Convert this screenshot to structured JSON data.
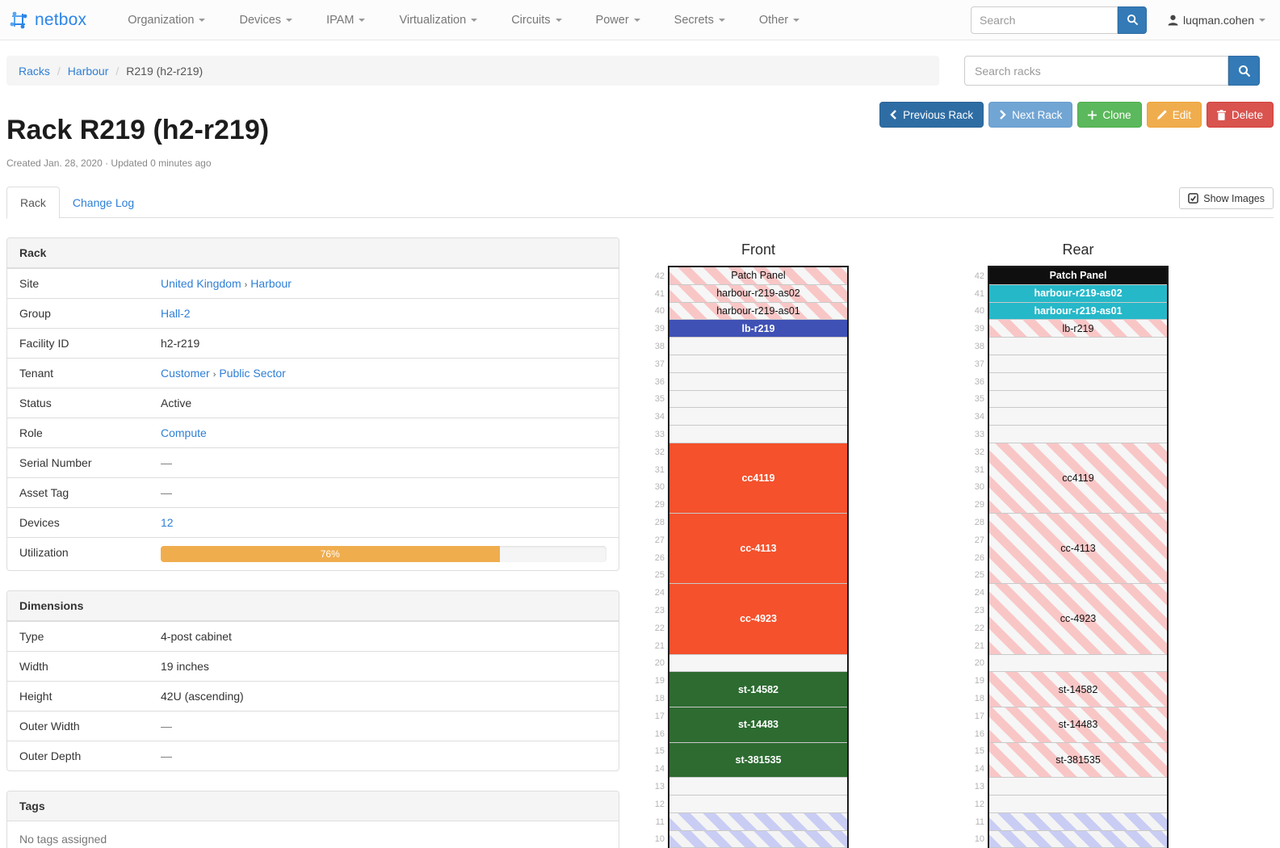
{
  "navbar": {
    "brand": "netbox",
    "items": [
      {
        "label": "Organization"
      },
      {
        "label": "Devices"
      },
      {
        "label": "IPAM"
      },
      {
        "label": "Virtualization"
      },
      {
        "label": "Circuits"
      },
      {
        "label": "Power"
      },
      {
        "label": "Secrets"
      },
      {
        "label": "Other"
      }
    ],
    "search_placeholder": "Search",
    "user": "luqman.cohen"
  },
  "breadcrumb": {
    "items": [
      "Racks",
      "Harbour",
      "R219 (h2-r219)"
    ]
  },
  "rack_search": {
    "placeholder": "Search racks"
  },
  "actions": {
    "previous": "Previous Rack",
    "next": "Next Rack",
    "clone": "Clone",
    "edit": "Edit",
    "delete": "Delete"
  },
  "page": {
    "title": "Rack R219 (h2-r219)",
    "meta": "Created Jan. 28, 2020 · Updated 0 minutes ago"
  },
  "tabs": {
    "rack": "Rack",
    "changelog": "Change Log",
    "show_images": "Show Images"
  },
  "rack_panel": {
    "title": "Rack",
    "site_label": "Site",
    "site_links": [
      "United Kingdom",
      "Harbour"
    ],
    "group_label": "Group",
    "group_link": "Hall-2",
    "facility_label": "Facility ID",
    "facility_value": "h2-r219",
    "tenant_label": "Tenant",
    "tenant_links": [
      "Customer",
      "Public Sector"
    ],
    "status_label": "Status",
    "status_value": "Active",
    "role_label": "Role",
    "role_link": "Compute",
    "serial_label": "Serial Number",
    "serial_value": "—",
    "asset_label": "Asset Tag",
    "asset_value": "—",
    "devices_label": "Devices",
    "devices_link": "12",
    "util_label": "Utilization",
    "util_value": 76,
    "util_pct": "76%"
  },
  "dimensions_panel": {
    "title": "Dimensions",
    "type_label": "Type",
    "type_value": "4-post cabinet",
    "width_label": "Width",
    "width_value": "19 inches",
    "height_label": "Height",
    "height_value": "42U (ascending)",
    "outer_width_label": "Outer Width",
    "outer_width_value": "—",
    "outer_depth_label": "Outer Depth",
    "outer_depth_value": "—"
  },
  "tags_panel": {
    "title": "Tags",
    "empty_text": "No tags assigned"
  },
  "colors": {
    "link_blue": "#2e7fd6",
    "progress_orange": "#f0ad4e",
    "device_blue": "#3f51b5",
    "device_cyan": "#25b8c9",
    "device_orange": "#f4512c",
    "device_green": "#2d6b31",
    "device_black": "#0f0f0f",
    "reserved_stripe_red": "#f9c6c6",
    "reserved_stripe_blue": "#c9cdf4"
  },
  "elevations": {
    "top_unit": 42,
    "bottom_unit": 9,
    "front": {
      "title": "Front",
      "units": [
        {
          "span": 1,
          "label": "Patch Panel",
          "type": "reserved"
        },
        {
          "span": 1,
          "label": "harbour-r219-as02",
          "type": "reserved"
        },
        {
          "span": 1,
          "label": "harbour-r219-as01",
          "type": "reserved"
        },
        {
          "span": 1,
          "label": "lb-r219",
          "type": "device",
          "color": "#3f51b5"
        },
        {
          "span": 1,
          "type": "empty"
        },
        {
          "span": 1,
          "type": "empty"
        },
        {
          "span": 1,
          "type": "empty"
        },
        {
          "span": 1,
          "type": "empty"
        },
        {
          "span": 1,
          "type": "empty"
        },
        {
          "span": 1,
          "type": "empty"
        },
        {
          "span": 4,
          "label": "cc4119",
          "type": "device",
          "color": "#f4512c"
        },
        {
          "span": 4,
          "label": "cc-4113",
          "type": "device",
          "color": "#f4512c"
        },
        {
          "span": 4,
          "label": "cc-4923",
          "type": "device",
          "color": "#f4512c"
        },
        {
          "span": 1,
          "type": "empty"
        },
        {
          "span": 2,
          "label": "st-14582",
          "type": "device",
          "color": "#2d6b31"
        },
        {
          "span": 2,
          "label": "st-14483",
          "type": "device",
          "color": "#2d6b31"
        },
        {
          "span": 2,
          "label": "st-381535",
          "type": "device",
          "color": "#2d6b31"
        },
        {
          "span": 1,
          "type": "empty"
        },
        {
          "span": 1,
          "type": "empty"
        },
        {
          "span": 1,
          "type": "reserved-empty"
        },
        {
          "span": 1,
          "type": "reserved-empty"
        },
        {
          "span": 1,
          "type": "reserved-empty"
        }
      ]
    },
    "rear": {
      "title": "Rear",
      "units": [
        {
          "span": 1,
          "label": "Patch Panel",
          "type": "device",
          "color": "#0f0f0f"
        },
        {
          "span": 1,
          "label": "harbour-r219-as02",
          "type": "device",
          "color": "#25b8c9"
        },
        {
          "span": 1,
          "label": "harbour-r219-as01",
          "type": "device",
          "color": "#25b8c9"
        },
        {
          "span": 1,
          "label": "lb-r219",
          "type": "reserved"
        },
        {
          "span": 1,
          "type": "empty"
        },
        {
          "span": 1,
          "type": "empty"
        },
        {
          "span": 1,
          "type": "empty"
        },
        {
          "span": 1,
          "type": "empty"
        },
        {
          "span": 1,
          "type": "empty"
        },
        {
          "span": 1,
          "type": "empty"
        },
        {
          "span": 4,
          "label": "cc4119",
          "type": "reserved"
        },
        {
          "span": 4,
          "label": "cc-4113",
          "type": "reserved"
        },
        {
          "span": 4,
          "label": "cc-4923",
          "type": "reserved"
        },
        {
          "span": 1,
          "type": "empty"
        },
        {
          "span": 2,
          "label": "st-14582",
          "type": "reserved"
        },
        {
          "span": 2,
          "label": "st-14483",
          "type": "reserved"
        },
        {
          "span": 2,
          "label": "st-381535",
          "type": "reserved"
        },
        {
          "span": 1,
          "type": "empty"
        },
        {
          "span": 1,
          "type": "empty"
        },
        {
          "span": 1,
          "type": "reserved-empty"
        },
        {
          "span": 1,
          "type": "reserved-empty"
        },
        {
          "span": 1,
          "type": "reserved-empty"
        }
      ]
    }
  }
}
